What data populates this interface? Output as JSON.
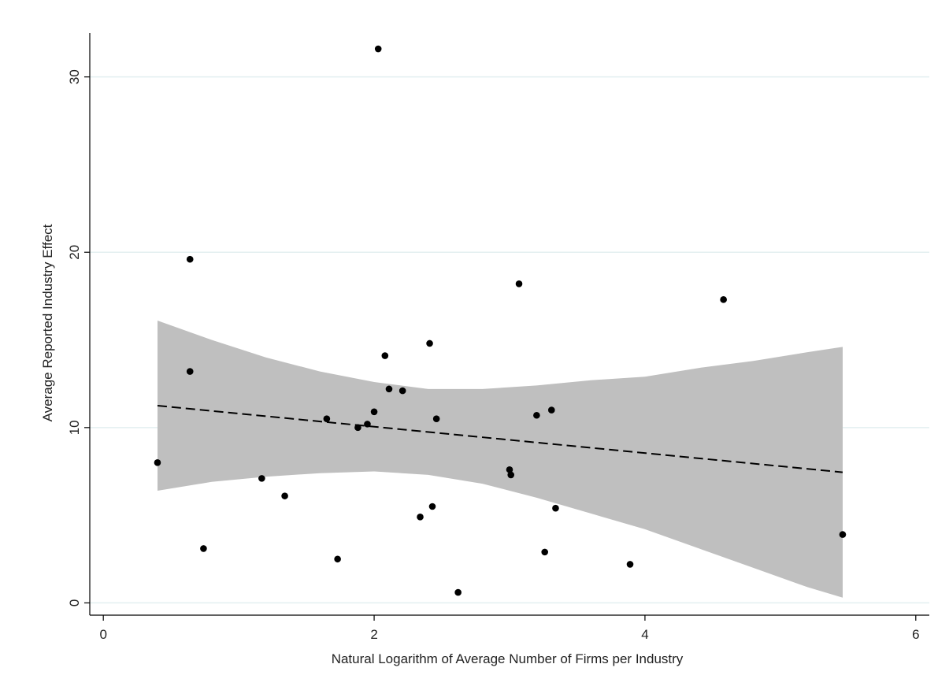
{
  "chart_data": {
    "type": "scatter",
    "title": "",
    "xlabel": "Natural Logarithm of Average Number of Firms per Industry",
    "ylabel": "Average Reported Industry Effect",
    "xlim": [
      -0.1,
      6.1
    ],
    "ylim": [
      -0.7,
      32.5
    ],
    "x_ticks": [
      "0",
      "2",
      "4",
      "6"
    ],
    "x_tick_values": [
      0,
      2,
      4,
      6
    ],
    "y_ticks": [
      "0",
      "10",
      "20",
      "30"
    ],
    "y_tick_values": [
      0,
      10,
      20,
      30
    ],
    "grid": "horizontal",
    "legend": "none",
    "colors": {
      "points": "#000000",
      "fit_line": "#000000",
      "confidence_band": "#bfbfbf",
      "grid": "#e3eff0",
      "axis": "#000000"
    },
    "points": [
      {
        "x": 0.4,
        "y": 8.0
      },
      {
        "x": 0.64,
        "y": 19.6
      },
      {
        "x": 0.64,
        "y": 13.2
      },
      {
        "x": 0.74,
        "y": 3.1
      },
      {
        "x": 1.17,
        "y": 7.1
      },
      {
        "x": 1.34,
        "y": 6.1
      },
      {
        "x": 1.65,
        "y": 10.5
      },
      {
        "x": 1.73,
        "y": 2.5
      },
      {
        "x": 1.88,
        "y": 10.0
      },
      {
        "x": 1.95,
        "y": 10.2
      },
      {
        "x": 2.0,
        "y": 10.9
      },
      {
        "x": 2.03,
        "y": 31.6
      },
      {
        "x": 2.08,
        "y": 14.1
      },
      {
        "x": 2.11,
        "y": 12.2
      },
      {
        "x": 2.21,
        "y": 12.1
      },
      {
        "x": 2.34,
        "y": 4.9
      },
      {
        "x": 2.41,
        "y": 14.8
      },
      {
        "x": 2.43,
        "y": 5.5
      },
      {
        "x": 2.46,
        "y": 10.5
      },
      {
        "x": 2.62,
        "y": 0.6
      },
      {
        "x": 3.0,
        "y": 7.6
      },
      {
        "x": 3.01,
        "y": 7.3
      },
      {
        "x": 3.07,
        "y": 18.2
      },
      {
        "x": 3.2,
        "y": 10.7
      },
      {
        "x": 3.26,
        "y": 2.9
      },
      {
        "x": 3.31,
        "y": 11.0
      },
      {
        "x": 3.34,
        "y": 5.4
      },
      {
        "x": 3.89,
        "y": 2.2
      },
      {
        "x": 4.58,
        "y": 17.3
      },
      {
        "x": 5.46,
        "y": 3.9
      }
    ],
    "fit_line": {
      "style": "dashed",
      "x": [
        0.4,
        5.46
      ],
      "y": [
        11.25,
        7.45
      ]
    },
    "confidence_band": {
      "x": [
        0.4,
        0.8,
        1.2,
        1.6,
        2.0,
        2.4,
        2.8,
        3.2,
        3.6,
        4.0,
        4.4,
        4.8,
        5.2,
        5.46
      ],
      "upper": [
        16.1,
        15.0,
        14.0,
        13.2,
        12.6,
        12.2,
        12.2,
        12.4,
        12.7,
        12.9,
        13.4,
        13.8,
        14.3,
        14.6
      ],
      "lower": [
        6.4,
        6.9,
        7.2,
        7.4,
        7.5,
        7.3,
        6.8,
        6.0,
        5.1,
        4.2,
        3.1,
        2.0,
        0.9,
        0.3
      ]
    }
  }
}
